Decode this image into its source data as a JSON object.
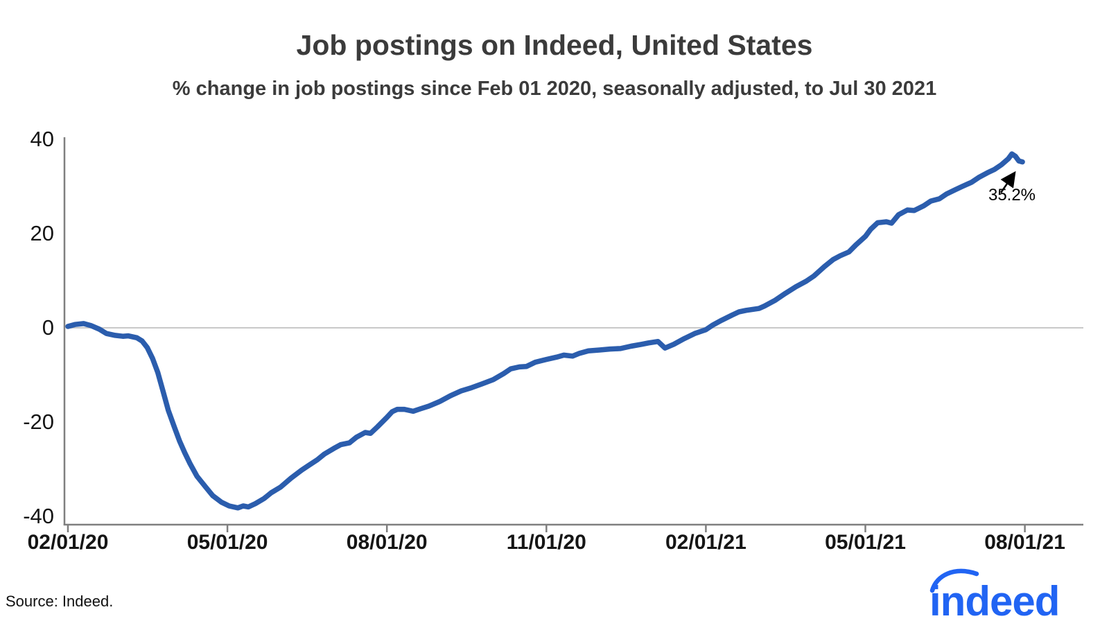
{
  "header": {
    "title": "Job postings on Indeed, United States",
    "subtitle": "% change in job postings since Feb 01 2020, seasonally adjusted, to Jul 30 2021"
  },
  "chart_data": {
    "type": "line",
    "title": "Job postings on Indeed, United States",
    "subtitle": "% change in job postings since Feb 01 2020, seasonally adjusted, to Jul 30 2021",
    "series_name": "% change in US job postings since Feb 01 2020",
    "line_color": "#2b5dad",
    "x_tick_labels": [
      "02/01/20",
      "05/01/20",
      "08/01/20",
      "11/01/20",
      "02/01/21",
      "05/01/21",
      "08/01/21"
    ],
    "y_ticks": [
      40,
      20,
      0,
      -20,
      -40
    ],
    "ylim": [
      -44,
      42
    ],
    "x_range": [
      "2020-02-01",
      "2021-07-30"
    ],
    "grid": "horizontal zero line only",
    "legend": "none",
    "annotation": {
      "label": "35.2%",
      "date": "2021-07-30",
      "value": 35.2
    },
    "points": [
      [
        "2020-02-01",
        0.3
      ],
      [
        "2020-02-05",
        0.7
      ],
      [
        "2020-02-10",
        0.9
      ],
      [
        "2020-02-14",
        0.5
      ],
      [
        "2020-02-19",
        -0.3
      ],
      [
        "2020-02-23",
        -1.2
      ],
      [
        "2020-02-28",
        -1.6
      ],
      [
        "2020-03-02",
        -1.8
      ],
      [
        "2020-03-05",
        -1.7
      ],
      [
        "2020-03-10",
        -2.1
      ],
      [
        "2020-03-13",
        -2.8
      ],
      [
        "2020-03-16",
        -4.2
      ],
      [
        "2020-03-19",
        -6.5
      ],
      [
        "2020-03-22",
        -9.5
      ],
      [
        "2020-03-25",
        -13.5
      ],
      [
        "2020-03-28",
        -17.5
      ],
      [
        "2020-04-01",
        -21.0
      ],
      [
        "2020-04-04",
        -24.0
      ],
      [
        "2020-04-07",
        -26.5
      ],
      [
        "2020-04-10",
        -28.8
      ],
      [
        "2020-04-14",
        -31.5
      ],
      [
        "2020-04-19",
        -33.8
      ],
      [
        "2020-04-23",
        -35.6
      ],
      [
        "2020-04-28",
        -37.0
      ],
      [
        "2020-05-02",
        -37.8
      ],
      [
        "2020-05-07",
        -38.2
      ],
      [
        "2020-05-10",
        -37.8
      ],
      [
        "2020-05-13",
        -38.0
      ],
      [
        "2020-05-17",
        -37.3
      ],
      [
        "2020-05-22",
        -36.2
      ],
      [
        "2020-05-26",
        -35.0
      ],
      [
        "2020-06-01",
        -33.8
      ],
      [
        "2020-06-07",
        -31.9
      ],
      [
        "2020-06-13",
        -30.2
      ],
      [
        "2020-06-17",
        -29.2
      ],
      [
        "2020-06-22",
        -28.0
      ],
      [
        "2020-06-26",
        -26.8
      ],
      [
        "2020-07-01",
        -25.6
      ],
      [
        "2020-07-05",
        -24.8
      ],
      [
        "2020-07-10",
        -24.4
      ],
      [
        "2020-07-14",
        -23.2
      ],
      [
        "2020-07-19",
        -22.2
      ],
      [
        "2020-07-22",
        -22.4
      ],
      [
        "2020-07-26",
        -21.0
      ],
      [
        "2020-08-01",
        -19.0
      ],
      [
        "2020-08-04",
        -17.8
      ],
      [
        "2020-08-07",
        -17.3
      ],
      [
        "2020-08-11",
        -17.3
      ],
      [
        "2020-08-16",
        -17.7
      ],
      [
        "2020-08-20",
        -17.2
      ],
      [
        "2020-08-25",
        -16.6
      ],
      [
        "2020-09-01",
        -15.6
      ],
      [
        "2020-09-07",
        -14.4
      ],
      [
        "2020-09-13",
        -13.4
      ],
      [
        "2020-09-19",
        -12.7
      ],
      [
        "2020-09-25",
        -11.9
      ],
      [
        "2020-10-01",
        -11.0
      ],
      [
        "2020-10-07",
        -9.7
      ],
      [
        "2020-10-11",
        -8.7
      ],
      [
        "2020-10-16",
        -8.3
      ],
      [
        "2020-10-20",
        -8.2
      ],
      [
        "2020-10-25",
        -7.3
      ],
      [
        "2020-11-01",
        -6.7
      ],
      [
        "2020-11-07",
        -6.2
      ],
      [
        "2020-11-11",
        -5.8
      ],
      [
        "2020-11-16",
        -6.0
      ],
      [
        "2020-11-20",
        -5.4
      ],
      [
        "2020-11-25",
        -4.9
      ],
      [
        "2020-12-01",
        -4.7
      ],
      [
        "2020-12-07",
        -4.5
      ],
      [
        "2020-12-13",
        -4.4
      ],
      [
        "2020-12-19",
        -3.9
      ],
      [
        "2020-12-25",
        -3.5
      ],
      [
        "2020-12-29",
        -3.2
      ],
      [
        "2021-01-04",
        -2.9
      ],
      [
        "2021-01-08",
        -4.3
      ],
      [
        "2021-01-13",
        -3.5
      ],
      [
        "2021-01-19",
        -2.3
      ],
      [
        "2021-01-25",
        -1.2
      ],
      [
        "2021-02-01",
        -0.4
      ],
      [
        "2021-02-05",
        0.6
      ],
      [
        "2021-02-10",
        1.6
      ],
      [
        "2021-02-16",
        2.7
      ],
      [
        "2021-02-20",
        3.4
      ],
      [
        "2021-02-24",
        3.7
      ],
      [
        "2021-03-01",
        4.1
      ],
      [
        "2021-03-04",
        4.6
      ],
      [
        "2021-03-10",
        5.8
      ],
      [
        "2021-03-16",
        7.3
      ],
      [
        "2021-03-22",
        8.7
      ],
      [
        "2021-03-28",
        9.9
      ],
      [
        "2021-04-02",
        11.0
      ],
      [
        "2021-04-08",
        13.0
      ],
      [
        "2021-04-13",
        14.5
      ],
      [
        "2021-04-17",
        15.3
      ],
      [
        "2021-04-22",
        16.1
      ],
      [
        "2021-04-26",
        17.6
      ],
      [
        "2021-05-01",
        19.4
      ],
      [
        "2021-05-04",
        20.9
      ],
      [
        "2021-05-08",
        22.3
      ],
      [
        "2021-05-13",
        22.5
      ],
      [
        "2021-05-16",
        22.2
      ],
      [
        "2021-05-20",
        24.0
      ],
      [
        "2021-05-25",
        25.0
      ],
      [
        "2021-05-29",
        24.9
      ],
      [
        "2021-06-04",
        25.9
      ],
      [
        "2021-06-08",
        26.9
      ],
      [
        "2021-06-13",
        27.4
      ],
      [
        "2021-06-17",
        28.4
      ],
      [
        "2021-06-22",
        29.3
      ],
      [
        "2021-06-26",
        30.0
      ],
      [
        "2021-07-01",
        30.9
      ],
      [
        "2021-07-05",
        31.9
      ],
      [
        "2021-07-10",
        32.9
      ],
      [
        "2021-07-14",
        33.6
      ],
      [
        "2021-07-18",
        34.6
      ],
      [
        "2021-07-22",
        35.9
      ],
      [
        "2021-07-24",
        36.9
      ],
      [
        "2021-07-26",
        36.4
      ],
      [
        "2021-07-28",
        35.4
      ],
      [
        "2021-07-30",
        35.2
      ]
    ]
  },
  "annotation": {
    "label": "35.2%"
  },
  "footer": {
    "source": "Source: Indeed.",
    "logo_text": "indeed"
  },
  "colors": {
    "line": "#2b5dad",
    "axis": "#7f7f7f",
    "zero_line": "#c9c9c9",
    "title_text": "#3b3b3b",
    "tick_text": "#151515",
    "logo_blue": "#2164f3"
  }
}
